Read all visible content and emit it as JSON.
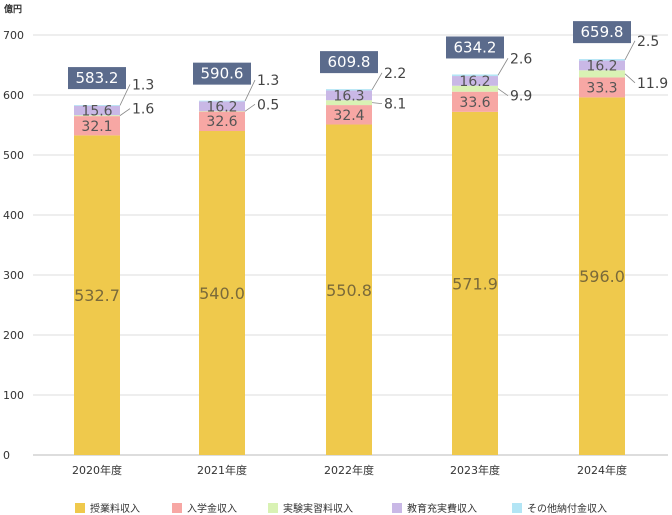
{
  "chart_data": {
    "type": "bar",
    "stacked": true,
    "y_unit": "億円",
    "ylim": [
      0,
      700
    ],
    "yticks": [
      "0",
      "100",
      "200",
      "300",
      "400",
      "500",
      "600",
      "700"
    ],
    "categories": [
      "2020年度",
      "2021年度",
      "2022年度",
      "2023年度",
      "2024年度"
    ],
    "series": [
      {
        "name": "授業料収入",
        "color": "#efc94c",
        "values": [
          532.7,
          540.0,
          550.8,
          571.9,
          596.0
        ],
        "labels": [
          "532.7",
          "540.0",
          "550.8",
          "571.9",
          "596.0"
        ]
      },
      {
        "name": "入学金収入",
        "color": "#f7a7a4",
        "values": [
          32.1,
          32.6,
          32.4,
          33.6,
          33.3
        ],
        "labels": [
          "32.1",
          "32.6",
          "32.4",
          "33.6",
          "33.3"
        ]
      },
      {
        "name": "実験実習料収入",
        "color": "#d9f2b4",
        "values": [
          1.6,
          0.5,
          8.1,
          9.9,
          11.9
        ],
        "labels": [
          "1.6",
          "0.5",
          "8.1",
          "9.9",
          "11.9"
        ]
      },
      {
        "name": "教育充実費収入",
        "color": "#c9b8e6",
        "values": [
          15.6,
          16.2,
          16.3,
          16.2,
          16.2
        ],
        "labels": [
          "15.6",
          "16.2",
          "16.3",
          "16.2",
          "16.2"
        ]
      },
      {
        "name": "その他納付金収入",
        "color": "#b3e5f5",
        "values": [
          1.3,
          1.3,
          2.2,
          2.6,
          2.5
        ],
        "labels": [
          "1.3",
          "1.3",
          "2.2",
          "2.6",
          "2.5"
        ]
      }
    ],
    "totals": [
      "583.2",
      "590.6",
      "609.8",
      "634.2",
      "659.8"
    ],
    "total_box_color": "#5b6b8c",
    "grid": true,
    "legend_position": "bottom"
  }
}
